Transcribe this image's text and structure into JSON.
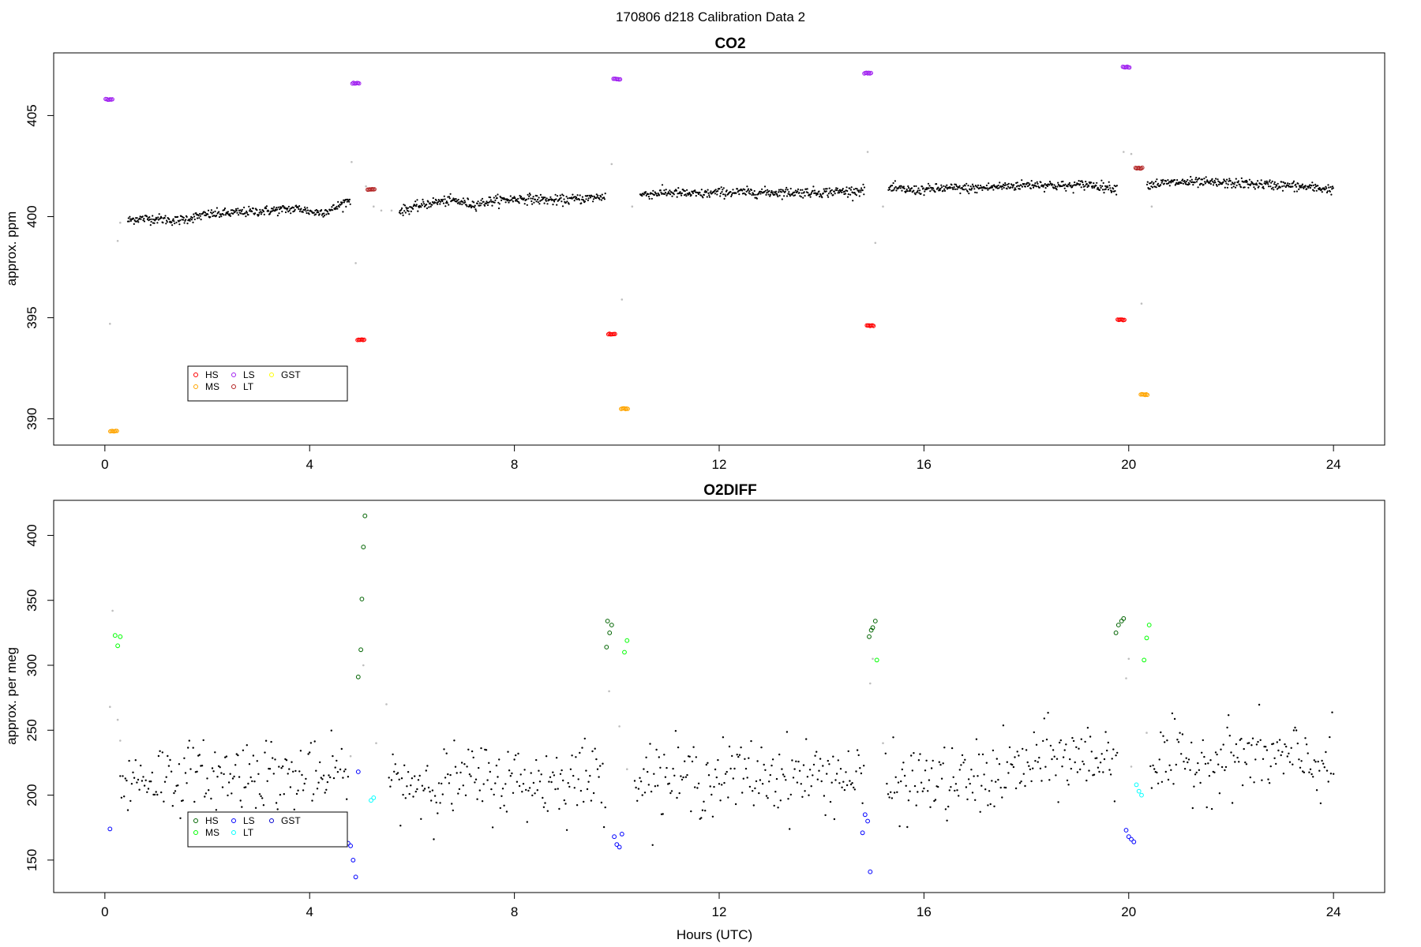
{
  "suptitle": "170806   d218   Calibration Data 2",
  "chart_data": [
    {
      "type": "scatter",
      "title": "CO2",
      "xlabel": "",
      "ylabel": "approx. ppm",
      "xlim": [
        -1,
        25
      ],
      "ylim": [
        388.7,
        408.1
      ],
      "xticks": [
        0,
        4,
        8,
        12,
        16,
        20,
        24
      ],
      "yticks": [
        390,
        395,
        400,
        405
      ],
      "legend": {
        "position": "bottom-left",
        "entries": [
          {
            "label": "HS",
            "color": "#ff0000"
          },
          {
            "label": "MS",
            "color": "#ffa500"
          },
          {
            "label": "LS",
            "color": "#a020f0"
          },
          {
            "label": "LT",
            "color": "#b22222"
          },
          {
            "label": "GST",
            "color": "#ffff00"
          }
        ]
      },
      "sample_trend": {
        "color": "#000000",
        "points": [
          [
            0.45,
            399.8
          ],
          [
            0.6,
            399.9
          ],
          [
            1.0,
            399.9
          ],
          [
            1.4,
            399.8
          ],
          [
            2.0,
            400.1
          ],
          [
            2.6,
            400.2
          ],
          [
            3.2,
            400.3
          ],
          [
            3.8,
            400.4
          ],
          [
            4.1,
            400.2
          ],
          [
            4.4,
            400.3
          ],
          [
            4.75,
            400.8
          ],
          [
            5.8,
            400.3
          ],
          [
            6.4,
            400.7
          ],
          [
            6.8,
            400.8
          ],
          [
            7.2,
            400.6
          ],
          [
            7.6,
            400.8
          ],
          [
            8.2,
            400.9
          ],
          [
            8.8,
            400.8
          ],
          [
            9.4,
            400.9
          ],
          [
            9.75,
            401.0
          ],
          [
            10.5,
            401.1
          ],
          [
            11.0,
            401.2
          ],
          [
            11.6,
            401.1
          ],
          [
            12.0,
            401.2
          ],
          [
            13.0,
            401.2
          ],
          [
            14.0,
            401.2
          ],
          [
            14.8,
            401.3
          ],
          [
            15.35,
            401.4
          ],
          [
            15.8,
            401.3
          ],
          [
            16.4,
            401.4
          ],
          [
            17.0,
            401.4
          ],
          [
            17.6,
            401.5
          ],
          [
            18.2,
            401.6
          ],
          [
            18.8,
            401.5
          ],
          [
            19.2,
            401.6
          ],
          [
            19.75,
            401.4
          ],
          [
            20.4,
            401.6
          ],
          [
            21.0,
            401.7
          ],
          [
            22.0,
            401.65
          ],
          [
            23.0,
            401.55
          ],
          [
            24.0,
            401.35
          ]
        ],
        "noise": 0.12
      },
      "transitions": {
        "color": "#bebebe",
        "points": [
          [
            0.1,
            394.7
          ],
          [
            0.25,
            398.8
          ],
          [
            0.3,
            399.7
          ],
          [
            4.82,
            402.7
          ],
          [
            4.9,
            397.7
          ],
          [
            5.1,
            401.5
          ],
          [
            5.25,
            400.5
          ],
          [
            5.4,
            400.3
          ],
          [
            5.6,
            400.3
          ],
          [
            9.9,
            402.6
          ],
          [
            10.1,
            395.9
          ],
          [
            10.3,
            400.5
          ],
          [
            14.9,
            403.2
          ],
          [
            15.05,
            398.7
          ],
          [
            15.2,
            400.5
          ],
          [
            19.9,
            403.2
          ],
          [
            20.05,
            403.1
          ],
          [
            20.25,
            395.7
          ],
          [
            20.45,
            400.5
          ]
        ]
      },
      "calibrations": [
        {
          "name": "HS",
          "color": "#ff0000",
          "points": [
            [
              5.0,
              393.9
            ],
            [
              9.9,
              394.2
            ],
            [
              14.95,
              394.6
            ],
            [
              19.85,
              394.9
            ]
          ]
        },
        {
          "name": "MS",
          "color": "#ffa500",
          "points": [
            [
              0.17,
              389.4
            ],
            [
              10.15,
              390.5
            ],
            [
              20.3,
              391.2
            ]
          ]
        },
        {
          "name": "LS",
          "color": "#a020f0",
          "points": [
            [
              0.08,
              405.8
            ],
            [
              4.9,
              406.6
            ],
            [
              10.0,
              406.8
            ],
            [
              14.9,
              407.1
            ],
            [
              19.95,
              407.4
            ]
          ]
        },
        {
          "name": "LT",
          "color": "#b22222",
          "points": [
            [
              5.2,
              401.35
            ],
            [
              20.2,
              402.4
            ]
          ]
        }
      ]
    },
    {
      "type": "scatter",
      "title": "O2DIFF",
      "xlabel": "Hours (UTC)",
      "ylabel": "approx. per meg",
      "xlim": [
        -1,
        25
      ],
      "ylim": [
        125,
        427
      ],
      "xticks": [
        0,
        4,
        8,
        12,
        16,
        20,
        24
      ],
      "yticks": [
        150,
        200,
        250,
        300,
        350,
        400
      ],
      "legend": {
        "position": "bottom-left",
        "entries": [
          {
            "label": "HS",
            "color": "#006400"
          },
          {
            "label": "MS",
            "color": "#00ff00"
          },
          {
            "label": "LS",
            "color": "#0000ff"
          },
          {
            "label": "LT",
            "color": "#00ffff"
          },
          {
            "label": "GST",
            "color": "#0000cd"
          }
        ]
      },
      "sample_trend": {
        "color": "#000000",
        "points": [
          [
            0.3,
            210
          ],
          [
            1.0,
            215
          ],
          [
            2.0,
            212
          ],
          [
            3.0,
            220
          ],
          [
            4.0,
            210
          ],
          [
            4.7,
            215
          ],
          [
            5.5,
            210
          ],
          [
            6.5,
            210
          ],
          [
            7.5,
            212
          ],
          [
            8.5,
            210
          ],
          [
            9.5,
            215
          ],
          [
            10.4,
            215
          ],
          [
            11.5,
            212
          ],
          [
            12.5,
            215
          ],
          [
            13.5,
            215
          ],
          [
            14.5,
            215
          ],
          [
            15.3,
            205
          ],
          [
            16.0,
            212
          ],
          [
            16.5,
            208
          ],
          [
            17.5,
            215
          ],
          [
            18.0,
            222
          ],
          [
            18.5,
            228
          ],
          [
            19.0,
            228
          ],
          [
            19.7,
            230
          ],
          [
            20.5,
            225
          ],
          [
            21.5,
            225
          ],
          [
            22.0,
            230
          ],
          [
            23.0,
            228
          ],
          [
            24.0,
            222
          ]
        ],
        "noise": 14
      },
      "transitions": {
        "color": "#bebebe",
        "points": [
          [
            0.1,
            268
          ],
          [
            0.15,
            342
          ],
          [
            0.25,
            258
          ],
          [
            0.3,
            242
          ],
          [
            4.8,
            230
          ],
          [
            5.05,
            300
          ],
          [
            5.3,
            240
          ],
          [
            5.5,
            270
          ],
          [
            9.85,
            280
          ],
          [
            10.05,
            253
          ],
          [
            10.2,
            220
          ],
          [
            14.95,
            286
          ],
          [
            15.0,
            305
          ],
          [
            15.2,
            240
          ],
          [
            19.95,
            290
          ],
          [
            20.0,
            305
          ],
          [
            20.05,
            222
          ],
          [
            20.35,
            248
          ]
        ]
      },
      "calibrations": [
        {
          "name": "HS",
          "color": "#006400",
          "points": [
            [
              4.95,
              291
            ],
            [
              5.0,
              312
            ],
            [
              5.02,
              351
            ],
            [
              5.05,
              391
            ],
            [
              5.08,
              415
            ],
            [
              9.8,
              314
            ],
            [
              9.82,
              334
            ],
            [
              9.86,
              325
            ],
            [
              9.9,
              331
            ],
            [
              14.93,
              322
            ],
            [
              14.97,
              327
            ],
            [
              15.0,
              329
            ],
            [
              15.05,
              334
            ],
            [
              19.75,
              325
            ],
            [
              19.8,
              331
            ],
            [
              19.86,
              334
            ],
            [
              19.9,
              336
            ]
          ]
        },
        {
          "name": "MS",
          "color": "#00ff00",
          "points": [
            [
              0.2,
              323
            ],
            [
              0.25,
              315
            ],
            [
              0.3,
              322
            ],
            [
              10.15,
              310
            ],
            [
              10.2,
              319
            ],
            [
              15.08,
              304
            ],
            [
              20.3,
              304
            ],
            [
              20.35,
              321
            ],
            [
              20.4,
              331
            ]
          ]
        },
        {
          "name": "LS",
          "color": "#0000ff",
          "points": [
            [
              0.1,
              174
            ],
            [
              4.75,
              163
            ],
            [
              4.8,
              161
            ],
            [
              4.85,
              150
            ],
            [
              4.9,
              137
            ],
            [
              4.95,
              218
            ],
            [
              9.95,
              168
            ],
            [
              10.0,
              162
            ],
            [
              10.05,
              160
            ],
            [
              10.1,
              170
            ],
            [
              14.8,
              171
            ],
            [
              14.85,
              185
            ],
            [
              14.9,
              180
            ],
            [
              14.95,
              141
            ],
            [
              19.95,
              173
            ],
            [
              20.0,
              168
            ],
            [
              20.05,
              166
            ],
            [
              20.1,
              164
            ]
          ]
        },
        {
          "name": "LT",
          "color": "#00ffff",
          "points": [
            [
              5.2,
              196
            ],
            [
              5.25,
              198
            ],
            [
              20.15,
              208
            ],
            [
              20.2,
              203
            ],
            [
              20.25,
              200
            ]
          ]
        }
      ]
    }
  ]
}
